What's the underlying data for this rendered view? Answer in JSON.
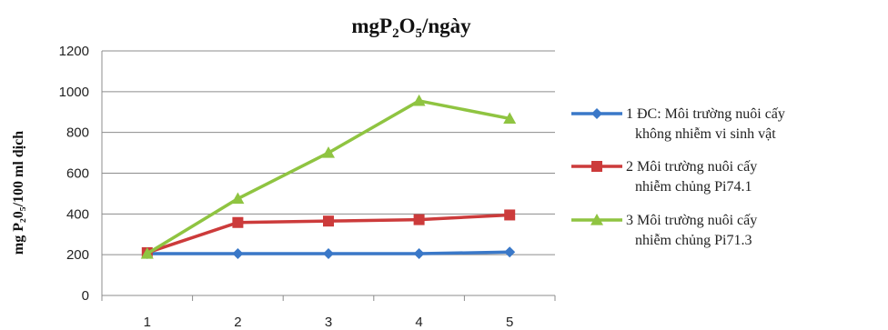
{
  "chart_data": {
    "type": "line",
    "title": "mgP2O5/ngày",
    "ylabel": "mg P₂0₅/100 ml dịch",
    "xlabel": "",
    "categories": [
      "1",
      "2",
      "3",
      "4",
      "5"
    ],
    "ylim": [
      0,
      1200
    ],
    "yticks": [
      0,
      200,
      400,
      600,
      800,
      1000,
      1200
    ],
    "grid": "horizontal",
    "legend_position": "right",
    "series": [
      {
        "name": "1 ĐC:  Môi trường nuôi cấy không nhiễm vi sinh vật",
        "name_lines": [
          "1 ĐC:  Môi trường nuôi cấy",
          "không nhiễm vi sinh vật"
        ],
        "values": [
          205,
          205,
          205,
          205,
          213
        ],
        "color": "#3a78c8",
        "marker": "diamond"
      },
      {
        "name": "2 Môi trường nuôi cấy nhiễm chủng Pi74.1",
        "name_lines": [
          "2 Môi trường nuôi cấy",
          "nhiễm chủng Pi74.1"
        ],
        "values": [
          210,
          358,
          365,
          372,
          395
        ],
        "color": "#cc3b3b",
        "marker": "square"
      },
      {
        "name": "3 Môi trường nuôi cấy nhiễm chủng Pi71.3",
        "name_lines": [
          "3 Môi trường nuôi cấy",
          "nhiễm chủng Pi71.3"
        ],
        "values": [
          205,
          475,
          700,
          955,
          868
        ],
        "color": "#8fc441",
        "marker": "triangle"
      }
    ]
  }
}
